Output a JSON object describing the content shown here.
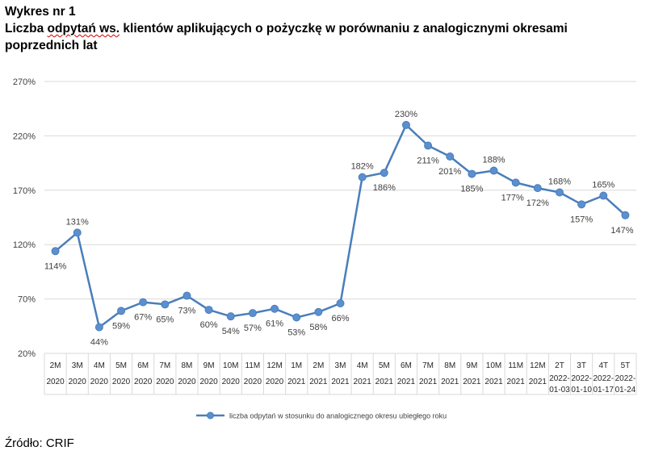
{
  "header": {
    "figure_no": "Wykres nr 1",
    "title_part1": "Liczba ",
    "title_squiggle": "odpytań ws.",
    "title_part2": " klientów aplikujących o pożyczkę w porównaniu z analogicznymi okresami poprzednich lat"
  },
  "source": "Źródło: CRIF",
  "colors": {
    "line": "#4a7ebb",
    "marker": "#5b8fd0",
    "grid": "#d9d9d9",
    "axis_text": "#404040"
  },
  "chart_data": {
    "type": "line",
    "title": "Liczba odpytań ws. klientów aplikujących o pożyczkę w porównaniu z analogicznymi okresami poprzednich lat",
    "ylim": [
      20,
      270
    ],
    "yticks": [
      "20%",
      "70%",
      "120%",
      "170%",
      "220%",
      "270%"
    ],
    "ytick_values": [
      20,
      70,
      120,
      170,
      220,
      270
    ],
    "grid": "horizontal",
    "legend_position": "bottom",
    "categories_top": [
      "2M",
      "3M",
      "4M",
      "5M",
      "6M",
      "7M",
      "8M",
      "9M",
      "10M",
      "11M",
      "12M",
      "1M",
      "2M",
      "3M",
      "4M",
      "5M",
      "6M",
      "7M",
      "8M",
      "9M",
      "10M",
      "11M",
      "12M",
      "2T",
      "3T",
      "4T",
      "5T"
    ],
    "categories_bottom": [
      "2020",
      "2020",
      "2020",
      "2020",
      "2020",
      "2020",
      "2020",
      "2020",
      "2020",
      "2020",
      "2020",
      "2021",
      "2021",
      "2021",
      "2021",
      "2021",
      "2021",
      "2021",
      "2021",
      "2021",
      "2021",
      "2021",
      "2021",
      "2022-01-03",
      "2022-01-10",
      "2022-01-17",
      "2022-01-24"
    ],
    "series": [
      {
        "name": "liczba odpytań w stosunku do analogicznego okresu ubiegłego roku",
        "values": [
          114,
          131,
          44,
          59,
          67,
          65,
          73,
          60,
          54,
          57,
          61,
          53,
          58,
          66,
          182,
          186,
          230,
          211,
          201,
          185,
          188,
          177,
          172,
          168,
          157,
          165,
          147
        ],
        "labels": [
          "114%",
          "131%",
          "44%",
          "59%",
          "67%",
          "65%",
          "73%",
          "60%",
          "54%",
          "57%",
          "61%",
          "53%",
          "58%",
          "66%",
          "182%",
          "186%",
          "230%",
          "211%",
          "201%",
          "185%",
          "188%",
          "177%",
          "172%",
          "168%",
          "157%",
          "165%",
          "147%"
        ]
      }
    ]
  }
}
